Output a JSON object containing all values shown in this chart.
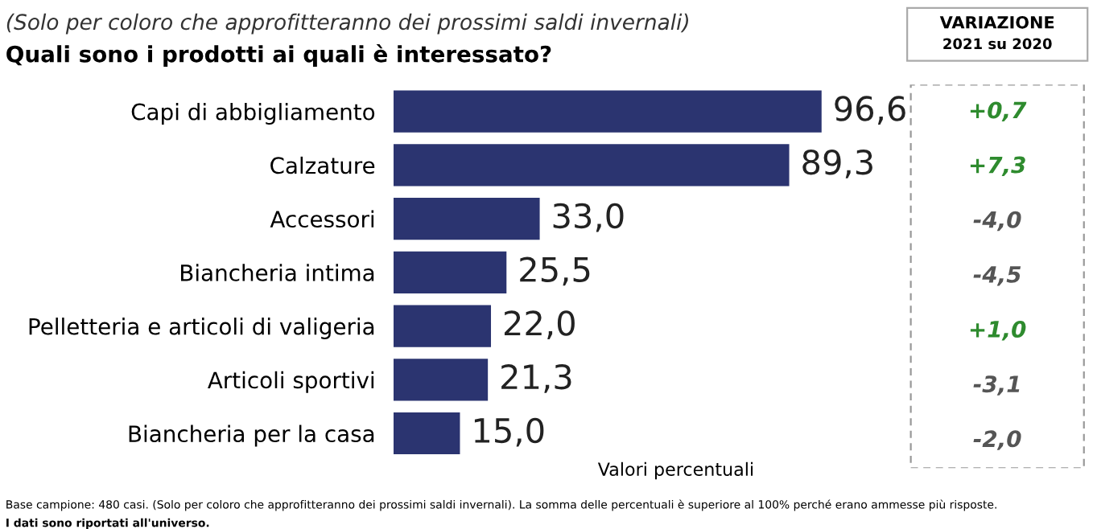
{
  "chart_data": [
    {
      "type": "bar",
      "orientation": "horizontal",
      "title": "Quali sono i prodotti ai quali è interessato?",
      "subtitle": "(Solo per coloro che approfitteranno dei prossimi saldi invernali)",
      "xlabel": "Valori percentuali",
      "categories": [
        "Capi di abbigliamento",
        "Calzature",
        "Accessori",
        "Biancheria intima",
        "Pelletteria e articoli di valigeria",
        "Articoli sportivi",
        "Biancheria per la casa"
      ],
      "values": [
        96.6,
        89.3,
        33.0,
        25.5,
        22.0,
        21.3,
        15.0
      ],
      "value_labels": [
        "96,6",
        "89,3",
        "33,0",
        "25,5",
        "22,0",
        "21,3",
        "15,0"
      ],
      "color": "#2b3470",
      "annotations": [
        "Base campione: 480 casi. (Solo per coloro che approfitteranno dei prossimi saldi invernali). La somma delle percentuali è superiore al 100% perché erano ammesse più risposte.",
        "I dati sono riportati all'universo."
      ]
    },
    {
      "type": "other",
      "title": "VARIAZIONE",
      "subtitle": "2021 su 2020",
      "annotations": [
        "+0,7",
        "+7,3",
        "-4,0",
        "-4,5",
        "+1,0",
        "-3,1",
        "-2,0"
      ],
      "colors": [
        "#2e8b2e",
        "#2e8b2e",
        "#555555",
        "#555555",
        "#2e8b2e",
        "#555555",
        "#555555"
      ]
    }
  ]
}
